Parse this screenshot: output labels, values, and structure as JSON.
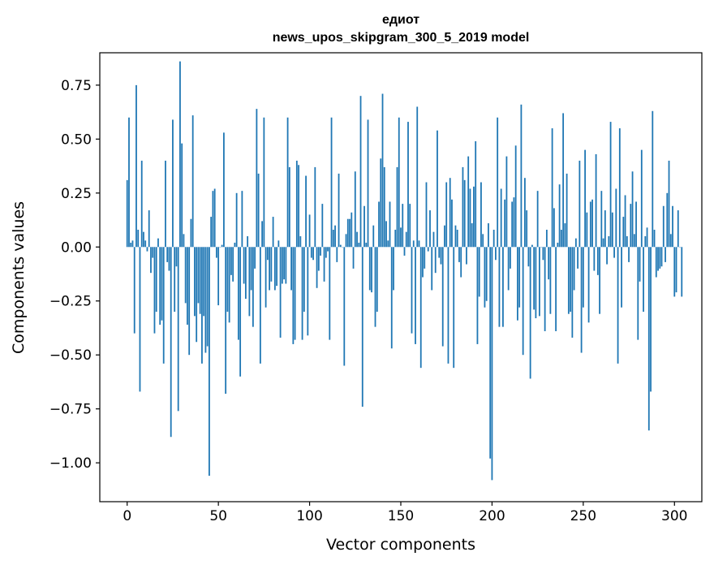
{
  "chart_data": {
    "type": "bar",
    "title_line1": "едиот",
    "title_line2": "news_upos_skipgram_300_5_2019 model",
    "xlabel": "Vector components",
    "ylabel": "Components values",
    "xlim": [
      -15,
      315
    ],
    "ylim": [
      -1.18,
      0.9
    ],
    "xticks": [
      0,
      50,
      100,
      150,
      200,
      250,
      300
    ],
    "xtick_labels": [
      "0",
      "50",
      "100",
      "150",
      "200",
      "250",
      "300"
    ],
    "yticks": [
      0.75,
      0.5,
      0.25,
      0.0,
      -0.25,
      -0.5,
      -0.75,
      -1.0
    ],
    "ytick_labels": [
      "0.75",
      "0.50",
      "0.25",
      "0.00",
      "−0.25",
      "−0.50",
      "−0.75",
      "−1.00"
    ],
    "bar_color": "#1f77b4",
    "values": [
      0.31,
      0.6,
      0.02,
      0.03,
      -0.4,
      0.75,
      0.08,
      -0.67,
      0.4,
      0.07,
      0.03,
      -0.02,
      0.17,
      -0.12,
      -0.05,
      -0.4,
      -0.3,
      0.04,
      -0.36,
      -0.34,
      -0.54,
      0.4,
      -0.07,
      -0.11,
      -0.88,
      0.59,
      -0.3,
      -0.09,
      -0.76,
      0.86,
      0.48,
      0.06,
      -0.26,
      -0.36,
      -0.5,
      0.13,
      0.61,
      -0.32,
      -0.44,
      -0.26,
      -0.31,
      -0.54,
      -0.32,
      -0.49,
      -0.46,
      -1.06,
      0.14,
      0.26,
      0.27,
      -0.05,
      -0.27,
      0.0,
      0.01,
      0.53,
      -0.68,
      -0.3,
      -0.35,
      -0.13,
      -0.16,
      0.02,
      0.25,
      -0.43,
      -0.6,
      0.26,
      -0.17,
      -0.24,
      0.05,
      -0.32,
      -0.2,
      -0.37,
      -0.1,
      0.64,
      0.34,
      -0.54,
      0.12,
      0.6,
      -0.28,
      -0.06,
      -0.2,
      -0.16,
      0.14,
      -0.2,
      -0.18,
      0.03,
      -0.42,
      -0.17,
      -0.15,
      -0.17,
      0.6,
      0.37,
      -0.2,
      -0.45,
      -0.43,
      0.4,
      0.38,
      0.05,
      -0.43,
      -0.3,
      0.33,
      -0.41,
      0.15,
      -0.05,
      -0.06,
      0.37,
      -0.19,
      -0.11,
      -0.04,
      0.2,
      -0.16,
      -0.05,
      -0.02,
      -0.43,
      0.6,
      0.08,
      0.1,
      -0.07,
      0.34,
      0.01,
      0.0,
      -0.55,
      0.06,
      0.13,
      0.13,
      0.16,
      -0.1,
      0.35,
      0.07,
      0.02,
      0.7,
      -0.74,
      0.19,
      0.02,
      0.59,
      -0.2,
      -0.21,
      0.1,
      -0.37,
      -0.3,
      0.21,
      0.41,
      0.71,
      0.37,
      0.12,
      0.03,
      0.21,
      -0.47,
      -0.2,
      0.08,
      0.37,
      0.6,
      0.09,
      0.2,
      -0.04,
      0.07,
      0.58,
      0.2,
      -0.4,
      0.03,
      -0.45,
      0.65,
      0.03,
      -0.56,
      -0.14,
      -0.1,
      0.3,
      -0.02,
      0.17,
      -0.2,
      0.07,
      -0.12,
      0.54,
      -0.05,
      -0.08,
      -0.46,
      0.1,
      0.3,
      -0.54,
      0.32,
      0.22,
      -0.56,
      0.1,
      0.08,
      -0.07,
      -0.14,
      0.37,
      0.31,
      -0.08,
      0.42,
      0.27,
      0.11,
      0.28,
      0.49,
      -0.45,
      -0.23,
      0.3,
      0.06,
      -0.28,
      -0.25,
      0.11,
      -0.98,
      -1.08,
      0.08,
      -0.06,
      0.6,
      -0.37,
      0.27,
      -0.37,
      0.22,
      0.42,
      -0.2,
      -0.1,
      0.21,
      0.23,
      0.47,
      -0.34,
      -0.28,
      0.66,
      -0.5,
      0.32,
      0.17,
      -0.09,
      -0.61,
      0.01,
      -0.29,
      -0.33,
      0.26,
      -0.32,
      0.0,
      -0.06,
      -0.39,
      0.08,
      -0.15,
      -0.31,
      0.55,
      0.18,
      -0.39,
      0.02,
      0.29,
      0.08,
      0.62,
      0.11,
      0.34,
      -0.31,
      -0.3,
      -0.42,
      -0.2,
      0.04,
      -0.1,
      0.4,
      -0.49,
      -0.28,
      0.45,
      0.16,
      -0.35,
      0.21,
      0.22,
      -0.11,
      0.43,
      -0.13,
      -0.31,
      0.26,
      0.04,
      0.17,
      -0.08,
      0.05,
      0.58,
      0.16,
      -0.05,
      0.27,
      -0.54,
      0.55,
      -0.28,
      0.14,
      0.24,
      0.05,
      -0.07,
      0.2,
      0.35,
      0.06,
      0.21,
      -0.43,
      -0.16,
      0.45,
      -0.3,
      0.05,
      0.09,
      -0.85,
      -0.67,
      0.63,
      0.08,
      -0.14,
      -0.11,
      -0.1,
      -0.09,
      0.19,
      -0.07,
      0.25,
      0.4,
      0.06,
      0.19,
      -0.23,
      -0.21,
      0.17,
      0.0,
      -0.23
    ]
  }
}
